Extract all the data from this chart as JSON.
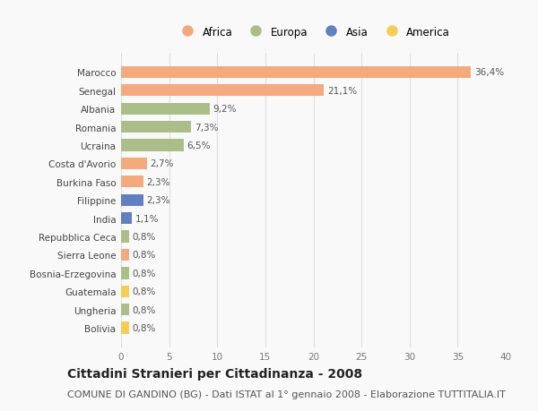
{
  "categories": [
    "Marocco",
    "Senegal",
    "Albania",
    "Romania",
    "Ucraina",
    "Costa d'Avorio",
    "Burkina Faso",
    "Filippine",
    "India",
    "Repubblica Ceca",
    "Sierra Leone",
    "Bosnia-Erzegovina",
    "Guatemala",
    "Ungheria",
    "Bolivia"
  ],
  "values": [
    36.4,
    21.1,
    9.2,
    7.3,
    6.5,
    2.7,
    2.3,
    2.3,
    1.1,
    0.8,
    0.8,
    0.8,
    0.8,
    0.8,
    0.8
  ],
  "labels": [
    "36,4%",
    "21,1%",
    "9,2%",
    "7,3%",
    "6,5%",
    "2,7%",
    "2,3%",
    "2,3%",
    "1,1%",
    "0,8%",
    "0,8%",
    "0,8%",
    "0,8%",
    "0,8%",
    "0,8%"
  ],
  "continents": [
    "Africa",
    "Africa",
    "Europa",
    "Europa",
    "Europa",
    "Africa",
    "Africa",
    "Asia",
    "Asia",
    "Europa",
    "Africa",
    "Europa",
    "America",
    "Europa",
    "America"
  ],
  "colors": {
    "Africa": "#F2AA7E",
    "Europa": "#ABBE8A",
    "Asia": "#6080C0",
    "America": "#F5CC55"
  },
  "xlim": [
    0,
    40
  ],
  "xticks": [
    0,
    5,
    10,
    15,
    20,
    25,
    30,
    35,
    40
  ],
  "title": "Cittadini Stranieri per Cittadinanza - 2008",
  "subtitle": "COMUNE DI GANDINO (BG) - Dati ISTAT al 1° gennaio 2008 - Elaborazione TUTTITALIA.IT",
  "background_color": "#f9f9f9",
  "grid_color": "#dddddd",
  "bar_height": 0.65,
  "title_fontsize": 10,
  "subtitle_fontsize": 8,
  "label_fontsize": 7.5,
  "tick_fontsize": 7.5,
  "legend_fontsize": 8.5
}
